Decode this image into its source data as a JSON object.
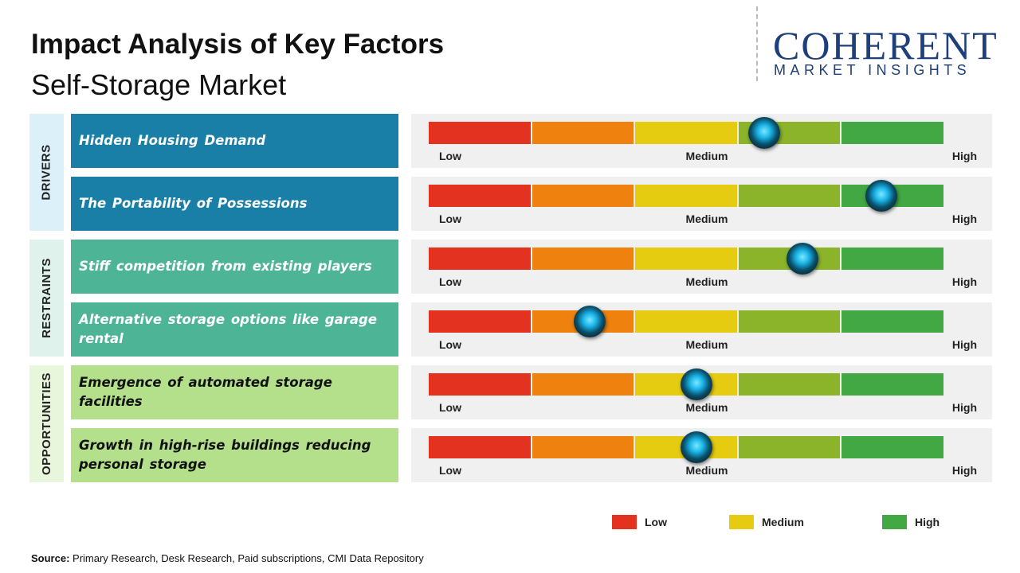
{
  "header": {
    "title": "Impact Analysis of Key Factors",
    "subtitle": "Self-Storage Market"
  },
  "logo": {
    "name": "COHERENT",
    "tagline": "MARKET INSIGHTS"
  },
  "scale": {
    "labels": [
      "Low",
      "Medium",
      "High"
    ],
    "lim": [
      0,
      5
    ],
    "segment_colors": [
      "#e3321f",
      "#ef820f",
      "#e6cc10",
      "#8cb42b",
      "#41a843"
    ]
  },
  "groups": [
    {
      "name": "DRIVERS",
      "color": "#1a7fa6",
      "label_bg": "#dcf0f9",
      "text_color": "#ffffff",
      "factors": [
        {
          "label": "Hidden Housing Demand",
          "level": 3.25
        },
        {
          "label": "The Portability of Possessions",
          "level": 4.38
        }
      ]
    },
    {
      "name": "RESTRAINTS",
      "color": "#4db595",
      "label_bg": "#dff3ec",
      "text_color": "#ffffff",
      "factors": [
        {
          "label": "Stiff competition from existing players",
          "level": 3.62
        },
        {
          "label": "Alternative storage options like garage rental",
          "level": 1.56
        }
      ]
    },
    {
      "name": "OPPORTUNITIES",
      "color": "#b4e08c",
      "label_bg": "#e8f6dc",
      "text_color": "#111111",
      "factors": [
        {
          "label": "Emergence of automated storage facilities",
          "level": 2.59
        },
        {
          "label": "Growth in high-rise buildings reducing personal storage",
          "level": 2.59
        }
      ]
    }
  ],
  "legend": [
    {
      "label": "Low",
      "color": "#e3321f"
    },
    {
      "label": "Medium",
      "color": "#e6cc10"
    },
    {
      "label": "High",
      "color": "#41a843"
    }
  ],
  "source": {
    "label": "Source:",
    "text": "Primary Research, Desk Research, Paid subscriptions, CMI Data Repository"
  }
}
